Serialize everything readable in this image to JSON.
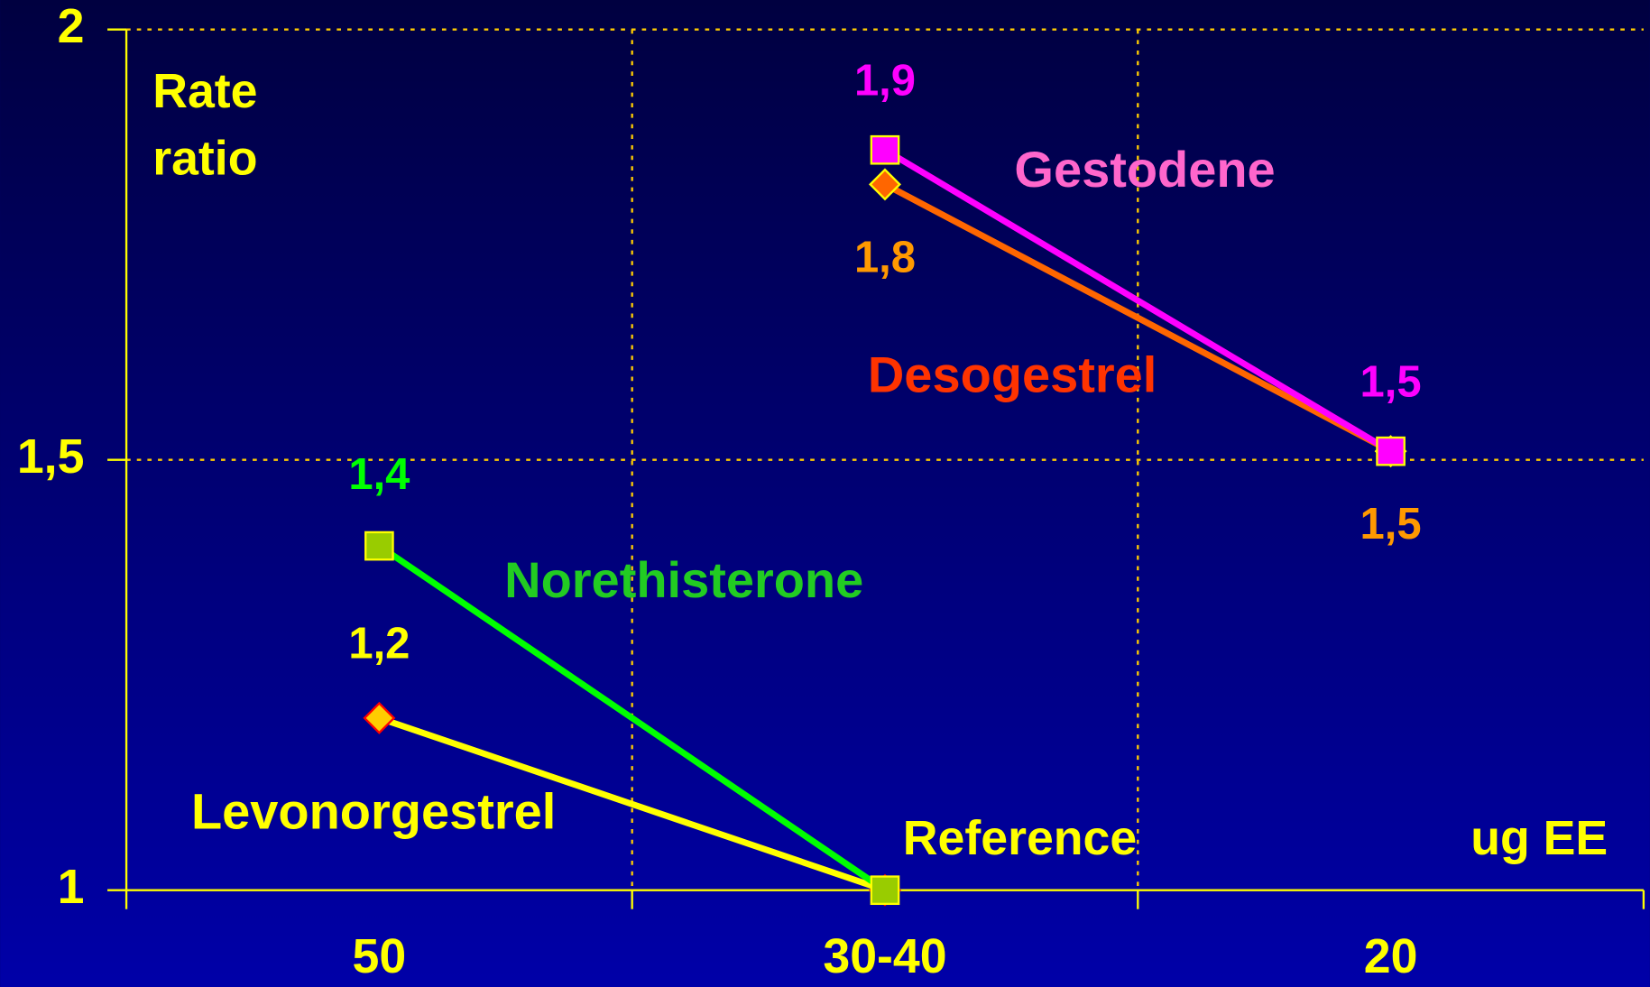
{
  "chart_data": {
    "type": "line",
    "y_label": "Rate\nratio",
    "x_label": "ug EE",
    "annotation": "Reference",
    "categories": [
      "50",
      "30-40",
      "20"
    ],
    "ylim": [
      1,
      2
    ],
    "yticks": [
      1,
      {
        "value": 1.5,
        "label": "1,5"
      },
      2
    ],
    "grid": true,
    "series": [
      {
        "name": "Levonorgestrel",
        "color": "#ffff00",
        "text_color": "#ffff00",
        "marker": "diamond",
        "marker_fill": "#ffcc00",
        "marker_stroke": "#ff0000",
        "values": [
          1.2,
          1.0,
          null
        ],
        "value_labels": [
          "1,2",
          null,
          null
        ]
      },
      {
        "name": "Norethisterone",
        "color": "#00ff00",
        "text_color": "#22cc22",
        "label_color": "#00ff00",
        "marker": "square",
        "marker_fill": "#99cc00",
        "marker_stroke": "#ffff00",
        "values": [
          1.4,
          1.0,
          null
        ],
        "value_labels": [
          "1,4",
          null,
          null
        ]
      },
      {
        "name": "Desogestrel",
        "color": "#ff6600",
        "text_color": "#ff3300",
        "label_color": "#ff9900",
        "marker": "diamond",
        "marker_fill": "#ff6600",
        "marker_stroke": "#ffff00",
        "values": [
          null,
          1.82,
          1.51
        ],
        "value_labels": [
          null,
          "1,8",
          "1,5"
        ]
      },
      {
        "name": "Gestodene",
        "color": "#ff00ff",
        "text_color": "#ff66cc",
        "label_color": "#ff00ff",
        "marker": "square",
        "marker_fill": "#ff00ff",
        "marker_stroke": "#ffff00",
        "values": [
          null,
          1.86,
          1.51
        ],
        "value_labels": [
          null,
          "1,9",
          "1,5"
        ]
      }
    ]
  }
}
